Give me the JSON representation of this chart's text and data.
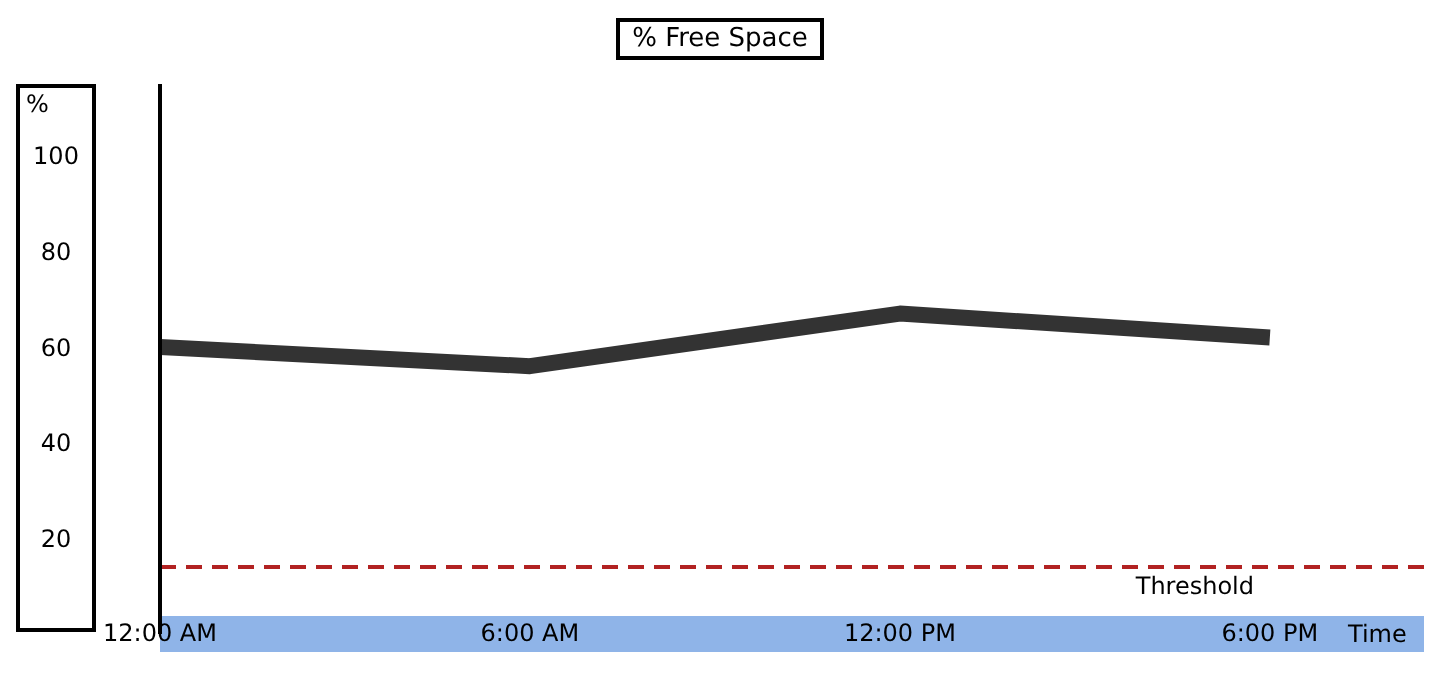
{
  "chart_data": {
    "type": "line",
    "title": "% Free Space",
    "xlabel": "Time",
    "ylabel": "%",
    "x": [
      0,
      6,
      12,
      18
    ],
    "series": [
      {
        "color": "#333333",
        "values": [
          60,
          56,
          67,
          62
        ]
      }
    ],
    "xlim": [
      0,
      20.5
    ],
    "xticks": [
      {
        "value": 0,
        "label": "12:00 AM"
      },
      {
        "value": 6,
        "label": "6:00 AM"
      },
      {
        "value": 12,
        "label": "12:00 PM"
      },
      {
        "value": 18,
        "label": "6:00 PM"
      }
    ],
    "ylim": [
      0,
      115
    ],
    "yticks": [
      20,
      40,
      60,
      80,
      100
    ],
    "ref_lines": [
      {
        "axis": "y",
        "value": 14,
        "label": "Threshold",
        "color": "#b22222",
        "line_style": "dashed"
      }
    ],
    "grid": false,
    "legend": false,
    "marker": "none",
    "line_style": "solid"
  }
}
